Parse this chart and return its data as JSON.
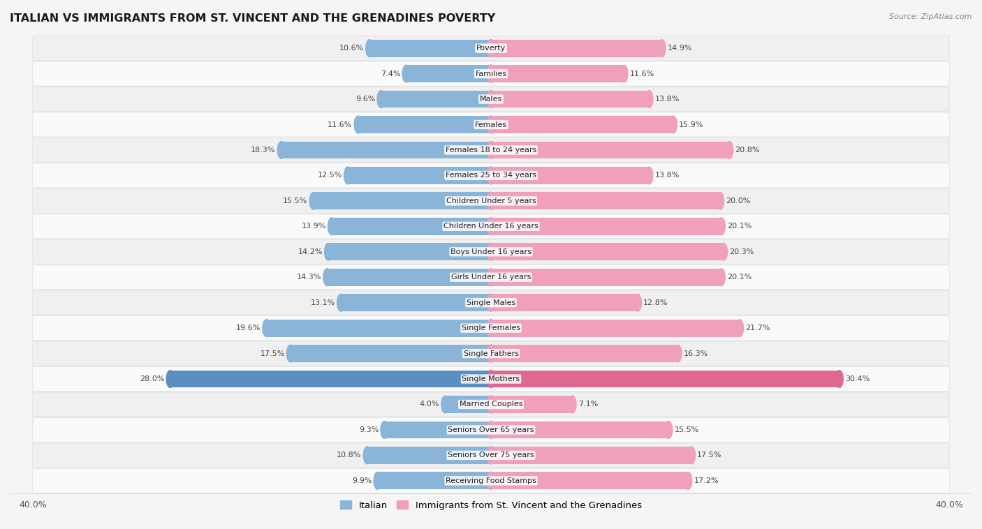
{
  "title": "ITALIAN VS IMMIGRANTS FROM ST. VINCENT AND THE GRENADINES POVERTY",
  "source": "Source: ZipAtlas.com",
  "categories": [
    "Poverty",
    "Families",
    "Males",
    "Females",
    "Females 18 to 24 years",
    "Females 25 to 34 years",
    "Children Under 5 years",
    "Children Under 16 years",
    "Boys Under 16 years",
    "Girls Under 16 years",
    "Single Males",
    "Single Females",
    "Single Fathers",
    "Single Mothers",
    "Married Couples",
    "Seniors Over 65 years",
    "Seniors Over 75 years",
    "Receiving Food Stamps"
  ],
  "italian_values": [
    10.6,
    7.4,
    9.6,
    11.6,
    18.3,
    12.5,
    15.5,
    13.9,
    14.2,
    14.3,
    13.1,
    19.6,
    17.5,
    28.0,
    4.0,
    9.3,
    10.8,
    9.9
  ],
  "immigrant_values": [
    14.9,
    11.6,
    13.8,
    15.9,
    20.8,
    13.8,
    20.0,
    20.1,
    20.3,
    20.1,
    12.8,
    21.7,
    16.3,
    30.4,
    7.1,
    15.5,
    17.5,
    17.2
  ],
  "italian_color": "#8ab4d8",
  "immigrant_color": "#f0a0b8",
  "italian_highlight_color": "#5b8fc4",
  "immigrant_highlight_color": "#e06890",
  "row_bg_even": "#f0f0f0",
  "row_bg_odd": "#fafafa",
  "bar_bg_color": "#ffffff",
  "background_color": "#f5f5f5",
  "max_val": 40.0,
  "bar_height": 0.68,
  "legend_italian": "Italian",
  "legend_immigrant": "Immigrants from St. Vincent and the Grenadines",
  "label_fontsize": 8.0,
  "cat_fontsize": 8.0
}
